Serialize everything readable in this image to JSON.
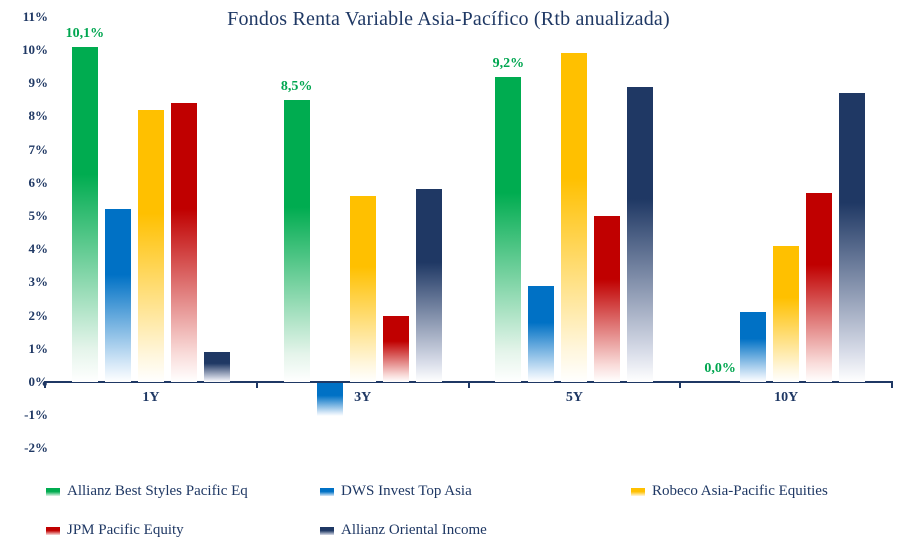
{
  "chart_data": {
    "type": "bar",
    "title": "Fondos Renta Variable Asia-Pacífico (Rtb anualizada)",
    "categories": [
      "1Y",
      "3Y",
      "5Y",
      "10Y"
    ],
    "series": [
      {
        "name": "Allianz Best Styles Pacific Eq",
        "color": "#00AC50",
        "color_light": "#E4F4EA",
        "values": [
          10.1,
          8.5,
          9.2,
          0.0
        ]
      },
      {
        "name": "DWS Invest Top Asia",
        "color": "#0071C5",
        "color_light": "#D8E9F8",
        "values": [
          5.2,
          -1.0,
          2.9,
          2.1
        ]
      },
      {
        "name": "Robeco Asia-Pacific Equities",
        "color": "#FFC000",
        "color_light": "#FFF6DC",
        "values": [
          8.2,
          5.6,
          9.9,
          4.1
        ]
      },
      {
        "name": "JPM Pacific Equity",
        "color": "#C00000",
        "color_light": "#F9DCDA",
        "values": [
          8.4,
          2.0,
          5.0,
          5.7
        ]
      },
      {
        "name": "Allianz Oriental Income",
        "color": "#1F3864",
        "color_light": "#D9DDE9",
        "values": [
          0.9,
          5.8,
          8.9,
          8.7
        ]
      }
    ],
    "annotations": [
      {
        "group": 0,
        "series": 0,
        "text": "10,1%"
      },
      {
        "group": 1,
        "series": 0,
        "text": "8,5%"
      },
      {
        "group": 2,
        "series": 0,
        "text": "9,2%"
      },
      {
        "group": 3,
        "series": 0,
        "text": "0,0%"
      }
    ],
    "y_ticks": [
      "11%",
      "10%",
      "9%",
      "8%",
      "7%",
      "6%",
      "5%",
      "4%",
      "3%",
      "2%",
      "1%",
      "0%",
      "-1%",
      "-2%"
    ],
    "ylim": [
      -2,
      11
    ],
    "y_tick_step": 1,
    "grid": false,
    "legend_position": "bottom",
    "colors": {
      "axis": "#1F3864",
      "tick_text": "#1F3864",
      "annotation_text": "#00A650",
      "background": "#FFFFFF"
    }
  }
}
